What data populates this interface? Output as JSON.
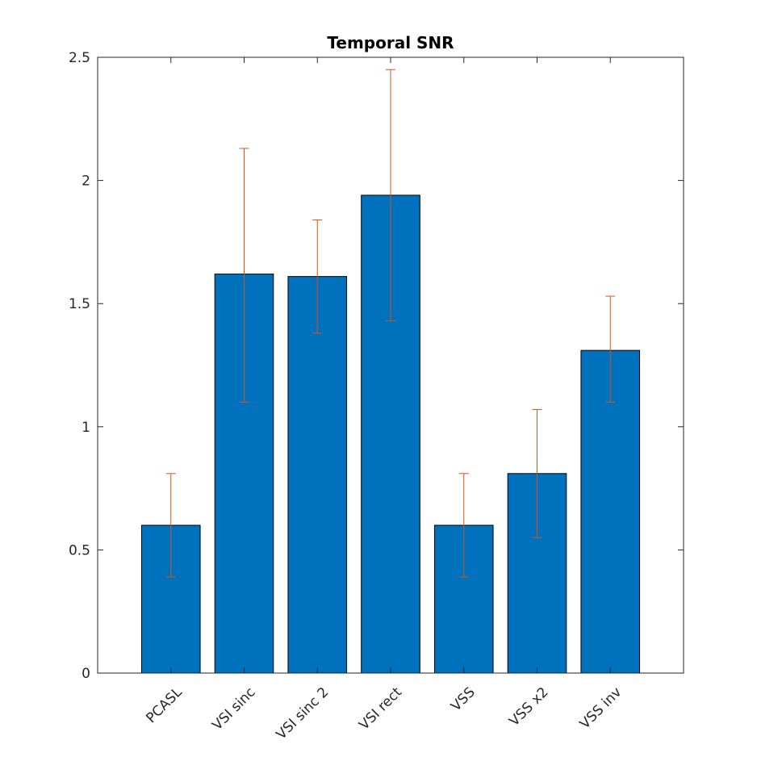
{
  "chart_data": {
    "type": "bar",
    "title": "Temporal SNR",
    "xlabel": "",
    "ylabel": "",
    "categories": [
      "PCASL",
      "VSI sinc",
      "VSI sinc 2",
      "VSI rect",
      "VSS",
      "VSS x2",
      "VSS inv"
    ],
    "values": [
      0.6,
      1.62,
      1.61,
      1.94,
      0.6,
      0.81,
      1.31
    ],
    "error_low": [
      0.39,
      1.1,
      1.38,
      1.43,
      0.39,
      0.55,
      1.1
    ],
    "error_high": [
      0.81,
      2.13,
      1.84,
      2.45,
      0.81,
      1.07,
      1.53
    ],
    "ylim": [
      0,
      2.5
    ],
    "yticks": [
      0,
      0.5,
      1,
      1.5,
      2,
      2.5
    ],
    "ytick_labels": [
      "0",
      "0.5",
      "1",
      "1.5",
      "2",
      "2.5"
    ],
    "grid": false,
    "bar_color": "#0072BD",
    "error_color": "#D95319"
  }
}
